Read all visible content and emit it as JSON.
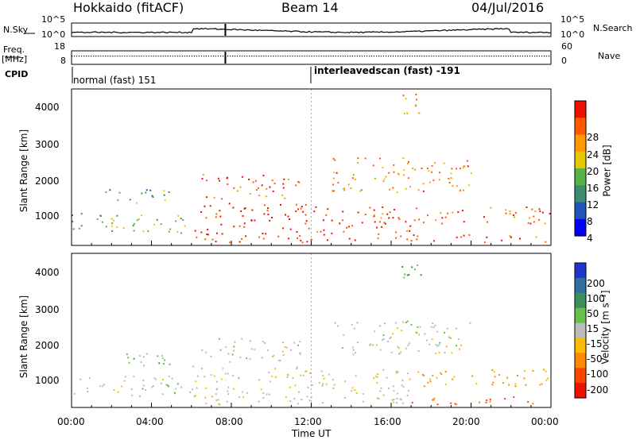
{
  "header": {
    "radar": "Hokkaido (fitACF)",
    "beam": "Beam 14",
    "date": "04/Jul/2016"
  },
  "strips": {
    "nsky_label": "N.Sky",
    "nsearch_label": "N.Search",
    "freq_label_line1": "Freq.",
    "freq_label_line2": "[MHz]",
    "nave_label": "Nave",
    "cpid_label": "CPID",
    "noise_left_ticks": [
      "10^5",
      "10^0"
    ],
    "noise_right_ticks": [
      "10^5",
      "10^0"
    ],
    "freq_left_ticks": [
      "18",
      "8"
    ],
    "freq_right_ticks": [
      "60",
      "0"
    ],
    "cpid_1": "normal (fast) 151",
    "cpid_2": "interleavedscan (fast) -191"
  },
  "power_panel": {
    "ylabel": "Slant Range [km]",
    "yticks": [
      "4000",
      "3000",
      "2000",
      "1000"
    ],
    "colorbar_label": "Power [dB]",
    "colorbar_ticks": [
      "28",
      "24",
      "20",
      "16",
      "12",
      "8",
      "4"
    ],
    "colors": [
      "#0000ff",
      "#2255bb",
      "#3c8f6e",
      "#56b347",
      "#e6c800",
      "#ff9900",
      "#ff5a00",
      "#ee1100"
    ]
  },
  "velocity_panel": {
    "ylabel": "Slant Range [km]",
    "yticks": [
      "4000",
      "3000",
      "2000",
      "1000"
    ],
    "colorbar_label": "Velocity [m s⁻¹]",
    "colorbar_ticks": [
      "200",
      "100",
      "50",
      "15",
      "-15",
      "-50",
      "-100",
      "-200"
    ],
    "colors": [
      "#2233cc",
      "#2f6f9f",
      "#3d8f5a",
      "#66c24a",
      "#bbbbbb",
      "#ffbb00",
      "#ff8800",
      "#ff4400",
      "#ee1100"
    ]
  },
  "xaxis": {
    "label": "Time UT",
    "ticks": [
      "00:00",
      "04:00",
      "08:00",
      "12:00",
      "16:00",
      "20:00",
      "00:00"
    ]
  },
  "chart_data": {
    "type": "heatmap",
    "x_range": [
      "00:00",
      "24:00"
    ],
    "y_range_km": [
      180,
      4600
    ],
    "power_range_db": [
      0,
      30
    ],
    "velocity_range": [
      -250,
      250
    ],
    "cpid_change_time": "12:00",
    "panels": [
      "Power [dB]",
      "Velocity [m s⁻¹]"
    ],
    "scatter_bands": [
      {
        "t0": 0.0,
        "t1": 6.0,
        "r0": 520,
        "r1": 1100,
        "power": 13,
        "velocity": 0
      },
      {
        "t0": 1.5,
        "t1": 5.0,
        "r0": 1400,
        "r1": 1800,
        "power": 11,
        "velocity": 20
      },
      {
        "t0": 6.0,
        "t1": 12.0,
        "r0": 280,
        "r1": 1400,
        "power": 28,
        "velocity": -5
      },
      {
        "t0": 6.5,
        "t1": 11.5,
        "r0": 1500,
        "r1": 2200,
        "power": 25,
        "velocity": 0
      },
      {
        "t0": 12.0,
        "t1": 17.0,
        "r0": 300,
        "r1": 1300,
        "power": 27,
        "velocity": -10
      },
      {
        "t0": 13.0,
        "t1": 20.0,
        "r0": 1700,
        "r1": 2700,
        "power": 22,
        "velocity": 0
      },
      {
        "t0": 17.0,
        "t1": 24.0,
        "r0": 800,
        "r1": 1300,
        "power": 25,
        "velocity": -40
      },
      {
        "t0": 17.0,
        "t1": 24.0,
        "r0": 280,
        "r1": 500,
        "power": 26,
        "velocity": -80
      },
      {
        "t0": 16.5,
        "t1": 17.8,
        "r0": 3900,
        "r1": 4500,
        "power": 20,
        "velocity": 30
      }
    ]
  }
}
